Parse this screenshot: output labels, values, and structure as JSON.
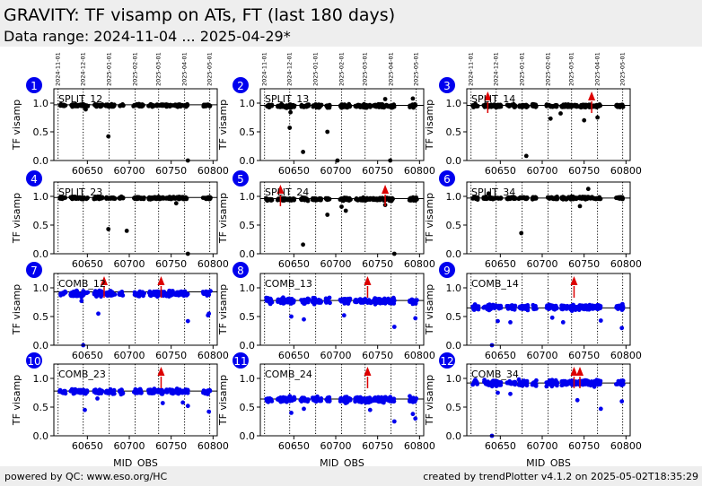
{
  "header": {
    "title": "GRAVITY: TF visamp on ATs, FT (last 180 days)",
    "subtitle": "Data range: 2024-11-04 ... 2025-04-29*"
  },
  "footer": {
    "left": "powered by QC: www.eso.org/HC",
    "right": "created by trendPlotter v4.1.2 on 2025-05-02T18:35:29"
  },
  "colors": {
    "split": "#000000",
    "comb": "#0000ee",
    "marker": "#dd0000",
    "badge": "#0000ee"
  },
  "chart_data": {
    "type": "scatter",
    "xlabel": "MJD_OBS",
    "ylabel": "TF visamp",
    "xlim": [
      60610,
      60805
    ],
    "ylim": [
      0,
      1.25
    ],
    "x_ticks": [
      60650,
      60700,
      60750,
      60800
    ],
    "y_ticks": [
      0.0,
      0.5,
      1.0
    ],
    "y_tick_labels": [
      "0.0",
      "0.5",
      "1.0"
    ],
    "month_lines": [
      {
        "mjd": 60615,
        "label": "2024-11-01"
      },
      {
        "mjd": 60645,
        "label": "2024-12-01"
      },
      {
        "mjd": 60676,
        "label": "2025-01-01"
      },
      {
        "mjd": 60707,
        "label": "2025-02-01"
      },
      {
        "mjd": 60735,
        "label": "2025-03-01"
      },
      {
        "mjd": 60766,
        "label": "2025-04-01"
      },
      {
        "mjd": 60796,
        "label": "2025-05-01"
      }
    ],
    "obs_clusters": [
      [
        60617,
        60624
      ],
      [
        60630,
        60651
      ],
      [
        60658,
        60668
      ],
      [
        60672,
        60683
      ],
      [
        60688,
        60693
      ],
      [
        60705,
        60718
      ],
      [
        60723,
        60742
      ],
      [
        60744,
        60770
      ],
      [
        60788,
        60797
      ]
    ],
    "panels": [
      {
        "id": "1",
        "label": "SPLIT_12",
        "group": "split",
        "ref": 0.97,
        "mean": 0.96,
        "spread": 0.03,
        "outliers": [
          [
            60647,
            0.93
          ],
          [
            60648,
            0.89
          ],
          [
            60675,
            0.42
          ],
          [
            60770,
            0.0
          ]
        ],
        "arrows": []
      },
      {
        "id": "2",
        "label": "SPLIT_13",
        "group": "split",
        "ref": 0.96,
        "mean": 0.95,
        "spread": 0.04,
        "outliers": [
          [
            60645,
            0.57
          ],
          [
            60661,
            0.15
          ],
          [
            60690,
            0.5
          ],
          [
            60702,
            0.0
          ],
          [
            60765,
            0.0
          ],
          [
            60792,
            1.08
          ],
          [
            60646,
            0.84
          ],
          [
            60759,
            1.07
          ]
        ],
        "arrows": []
      },
      {
        "id": "3",
        "label": "SPLIT_14",
        "group": "split",
        "ref": 0.96,
        "mean": 0.95,
        "spread": 0.04,
        "outliers": [
          [
            60681,
            0.08
          ],
          [
            60710,
            0.73
          ],
          [
            60722,
            0.82
          ],
          [
            60766,
            0.75
          ],
          [
            60750,
            0.7
          ]
        ],
        "arrows": [
          60635,
          60759
        ]
      },
      {
        "id": "4",
        "label": "SPLIT_23",
        "group": "split",
        "ref": 0.98,
        "mean": 0.97,
        "spread": 0.03,
        "outliers": [
          [
            60675,
            0.43
          ],
          [
            60697,
            0.4
          ],
          [
            60770,
            0.0
          ],
          [
            60756,
            0.88
          ]
        ],
        "arrows": []
      },
      {
        "id": "5",
        "label": "SPLIT_24",
        "group": "split",
        "ref": 0.96,
        "mean": 0.95,
        "spread": 0.04,
        "outliers": [
          [
            60661,
            0.16
          ],
          [
            60690,
            0.68
          ],
          [
            60707,
            0.82
          ],
          [
            60712,
            0.75
          ],
          [
            60770,
            0.0
          ],
          [
            60759,
            0.85
          ]
        ],
        "arrows": [
          60634,
          60759
        ]
      },
      {
        "id": "6",
        "label": "SPLIT_34",
        "group": "split",
        "ref": 0.97,
        "mean": 0.97,
        "spread": 0.03,
        "outliers": [
          [
            60675,
            0.36
          ],
          [
            60745,
            0.83
          ],
          [
            60755,
            1.13
          ],
          [
            60636,
            1.05
          ]
        ],
        "arrows": []
      },
      {
        "id": "7",
        "label": "COMB_12",
        "group": "comb",
        "ref": 0.93,
        "mean": 0.9,
        "spread": 0.07,
        "outliers": [
          [
            60643,
            0.77
          ],
          [
            60663,
            0.55
          ],
          [
            60645,
            0.0
          ],
          [
            60770,
            0.42
          ],
          [
            60795,
            0.55
          ],
          [
            60794,
            0.52
          ]
        ],
        "arrows": [
          60670,
          60738
        ]
      },
      {
        "id": "8",
        "label": "COMB_13",
        "group": "comb",
        "ref": 0.78,
        "mean": 0.77,
        "spread": 0.07,
        "outliers": [
          [
            60647,
            0.5
          ],
          [
            60662,
            0.45
          ],
          [
            60770,
            0.32
          ],
          [
            60795,
            0.47
          ],
          [
            60710,
            0.52
          ]
        ],
        "arrows": [
          60738
        ]
      },
      {
        "id": "9",
        "label": "COMB_14",
        "group": "comb",
        "ref": 0.65,
        "mean": 0.66,
        "spread": 0.07,
        "outliers": [
          [
            60640,
            0.0
          ],
          [
            60647,
            0.42
          ],
          [
            60662,
            0.4
          ],
          [
            60725,
            0.4
          ],
          [
            60770,
            0.43
          ],
          [
            60795,
            0.3
          ],
          [
            60712,
            0.48
          ]
        ],
        "arrows": [
          60738
        ]
      },
      {
        "id": "10",
        "label": "COMB_23",
        "group": "comb",
        "ref": 0.78,
        "mean": 0.77,
        "spread": 0.06,
        "outliers": [
          [
            60647,
            0.45
          ],
          [
            60662,
            0.65
          ],
          [
            60740,
            0.57
          ],
          [
            60770,
            0.52
          ],
          [
            60795,
            0.42
          ],
          [
            60764,
            0.58
          ]
        ],
        "arrows": [
          60738
        ]
      },
      {
        "id": "11",
        "label": "COMB_24",
        "group": "comb",
        "ref": 0.64,
        "mean": 0.63,
        "spread": 0.07,
        "outliers": [
          [
            60647,
            0.4
          ],
          [
            60662,
            0.47
          ],
          [
            60741,
            0.45
          ],
          [
            60770,
            0.25
          ],
          [
            60795,
            0.3
          ],
          [
            60792,
            0.38
          ]
        ],
        "arrows": [
          60738
        ]
      },
      {
        "id": "12",
        "label": "COMB_34",
        "group": "comb",
        "ref": 0.92,
        "mean": 0.92,
        "spread": 0.07,
        "outliers": [
          [
            60640,
            0.0
          ],
          [
            60662,
            0.73
          ],
          [
            60742,
            0.62
          ],
          [
            60770,
            0.47
          ],
          [
            60795,
            0.6
          ],
          [
            60647,
            0.75
          ]
        ],
        "arrows": [
          60738,
          60745
        ]
      }
    ]
  }
}
